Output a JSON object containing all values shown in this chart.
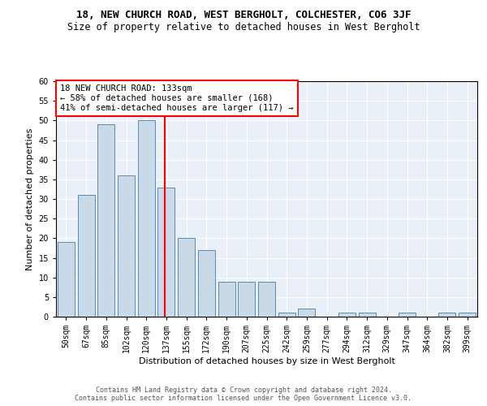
{
  "title": "18, NEW CHURCH ROAD, WEST BERGHOLT, COLCHESTER, CO6 3JF",
  "subtitle": "Size of property relative to detached houses in West Bergholt",
  "xlabel": "Distribution of detached houses by size in West Bergholt",
  "ylabel": "Number of detached properties",
  "bar_labels": [
    "50sqm",
    "67sqm",
    "85sqm",
    "102sqm",
    "120sqm",
    "137sqm",
    "155sqm",
    "172sqm",
    "190sqm",
    "207sqm",
    "225sqm",
    "242sqm",
    "259sqm",
    "277sqm",
    "294sqm",
    "312sqm",
    "329sqm",
    "347sqm",
    "364sqm",
    "382sqm",
    "399sqm"
  ],
  "bar_values": [
    19,
    31,
    49,
    36,
    50,
    33,
    20,
    17,
    9,
    9,
    9,
    1,
    2,
    0,
    1,
    1,
    0,
    1,
    0,
    1,
    1
  ],
  "bar_color": "#c9d9e8",
  "bar_edge_color": "#5a8ab5",
  "vline_x": 4.925,
  "annotation_text": "18 NEW CHURCH ROAD: 133sqm\n← 58% of detached houses are smaller (168)\n41% of semi-detached houses are larger (117) →",
  "annotation_box_color": "white",
  "annotation_box_edge_color": "red",
  "vline_color": "red",
  "ylim": [
    0,
    60
  ],
  "yticks": [
    0,
    5,
    10,
    15,
    20,
    25,
    30,
    35,
    40,
    45,
    50,
    55,
    60
  ],
  "footer_line1": "Contains HM Land Registry data © Crown copyright and database right 2024.",
  "footer_line2": "Contains public sector information licensed under the Open Government Licence v3.0.",
  "bg_color": "#eaf0f8",
  "title_fontsize": 9,
  "subtitle_fontsize": 8.5,
  "tick_fontsize": 7,
  "xlabel_fontsize": 8,
  "ylabel_fontsize": 8,
  "annotation_fontsize": 7.5,
  "footer_fontsize": 6
}
